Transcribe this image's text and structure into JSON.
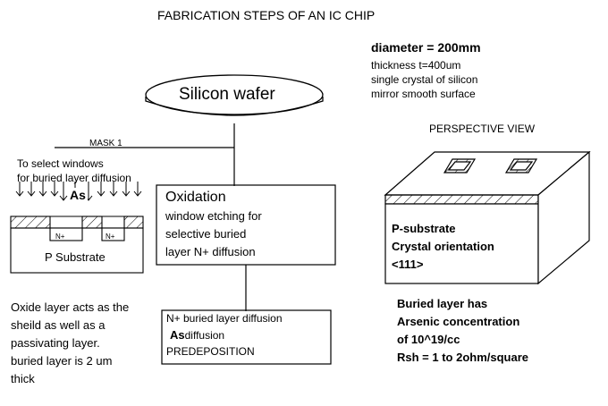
{
  "title": "FABRICATION STEPS OF AN IC CHIP",
  "wafer": {
    "label": "Silicon wafer",
    "specs": {
      "diameter": "diameter = 200mm",
      "thickness": "thickness t=400um",
      "crystal": "single crystal of silicon",
      "surface": "mirror smooth surface"
    }
  },
  "mask": {
    "label": "MASK 1"
  },
  "windows": {
    "line1": "To select windows",
    "line2": "for buried layer diffusion",
    "dopant": "As"
  },
  "cross_section": {
    "n_plus_label": "N+",
    "substrate_label": "P Substrate"
  },
  "oxidation": {
    "title": "Oxidation",
    "lines": [
      "window etching for",
      "selective buried",
      "layer N+ diffusion"
    ]
  },
  "diffusion": {
    "line1": "N+ buried layer diffusion",
    "dopant": "As",
    "dopant_suffix": "diffusion",
    "line3": "PREDEPOSITION"
  },
  "oxide_note": {
    "lines": [
      "Oxide layer acts as the",
      "sheild as well as a",
      "passivating layer.",
      "buried layer is 2 um",
      "thick"
    ]
  },
  "perspective": {
    "title": "PERSPECTIVE VIEW",
    "lines": [
      "P-substrate",
      "Crystal orientation",
      "<111>"
    ]
  },
  "buried_note": {
    "lines": [
      "Buried layer has",
      "Arsenic concentration",
      "of 10^19/cc",
      "Rsh = 1 to 2ohm/square"
    ]
  }
}
